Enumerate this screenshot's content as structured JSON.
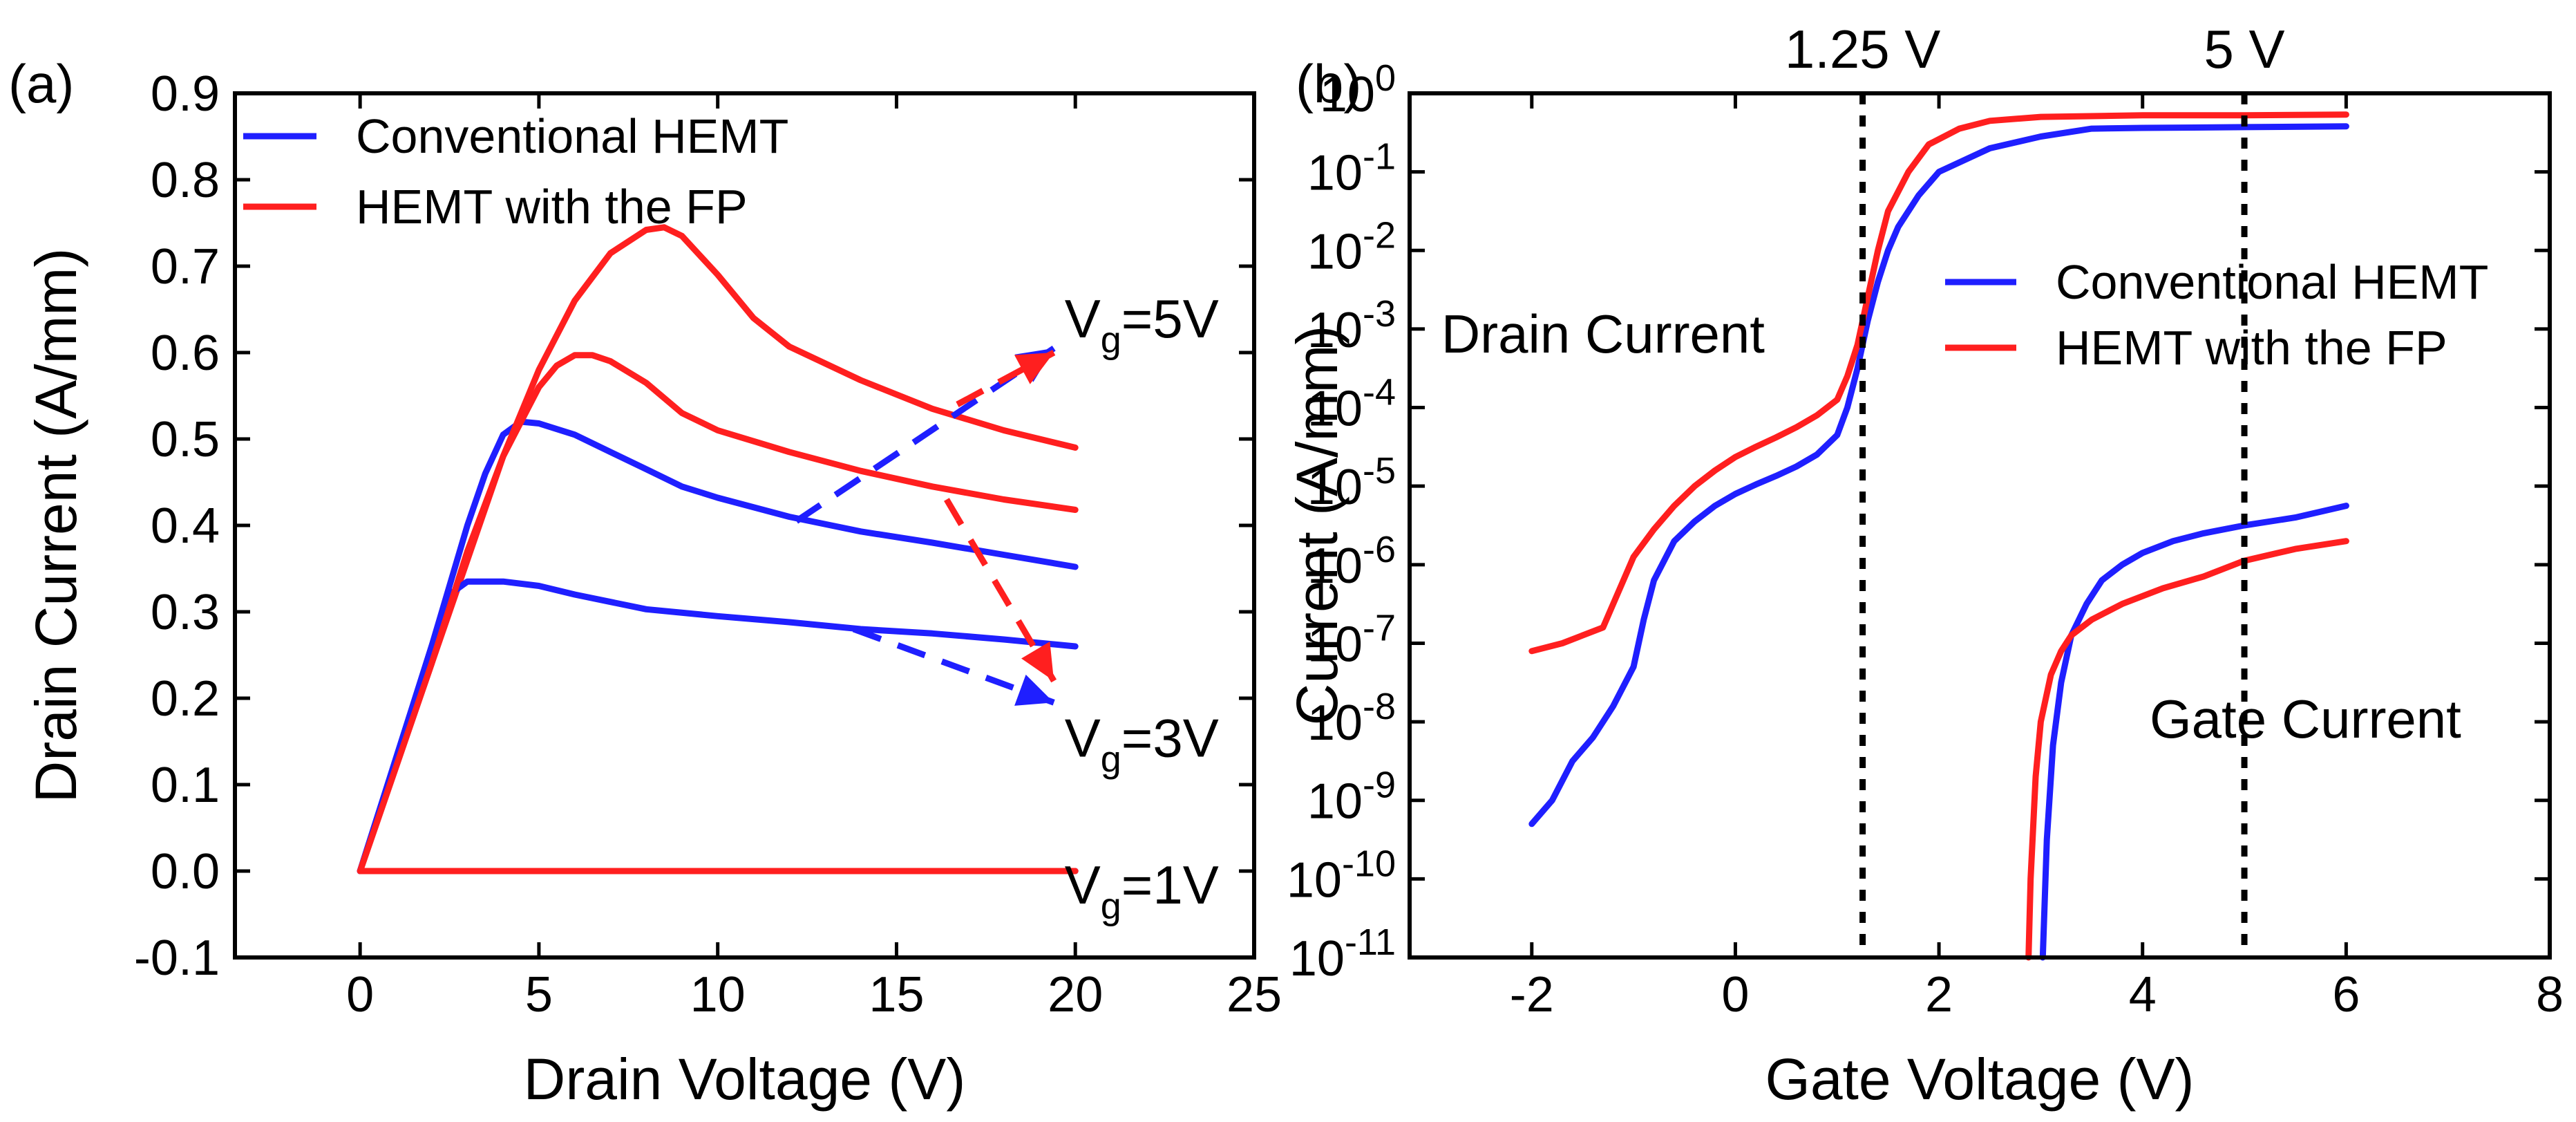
{
  "chart_data": [
    {
      "panel_label": "(a)",
      "type": "line",
      "xlabel": "Drain Voltage (V)",
      "ylabel": "Drain Current (A/mm)",
      "xlim": [
        -3.5,
        25
      ],
      "ylim": [
        -0.1,
        0.9
      ],
      "xticks": [
        0,
        5,
        10,
        15,
        20,
        25
      ],
      "xtick_labels": [
        "0",
        "5",
        "10",
        "15",
        "20",
        "25"
      ],
      "yticks": [
        -0.1,
        0.0,
        0.1,
        0.2,
        0.3,
        0.4,
        0.5,
        0.6,
        0.7,
        0.8,
        0.9
      ],
      "ytick_labels": [
        "-0.1",
        "0.0",
        "0.1",
        "0.2",
        "0.3",
        "0.4",
        "0.5",
        "0.6",
        "0.7",
        "0.8",
        "0.9"
      ],
      "legend": {
        "position": "top-left",
        "entries": [
          {
            "label": "Conventional HEMT",
            "color": "#1f1fff"
          },
          {
            "label": "HEMT with the FP",
            "color": "#ff1f1f"
          }
        ]
      },
      "series": [
        {
          "name": "Conventional HEMT, Vg=5V",
          "color": "#1f1fff",
          "x": [
            0,
            0.5,
            1,
            1.5,
            2,
            2.5,
            3,
            3.5,
            4,
            4.5,
            5,
            6,
            7,
            8,
            9,
            10,
            12,
            14,
            16,
            18,
            20
          ],
          "y": [
            0,
            0.065,
            0.13,
            0.195,
            0.26,
            0.33,
            0.4,
            0.46,
            0.505,
            0.52,
            0.518,
            0.505,
            0.485,
            0.465,
            0.445,
            0.432,
            0.41,
            0.393,
            0.38,
            0.366,
            0.352
          ]
        },
        {
          "name": "HEMT with the FP, Vg=5V",
          "color": "#ff1f1f",
          "x": [
            0,
            0.5,
            1,
            2,
            3,
            4,
            5,
            6,
            7,
            8,
            8.5,
            9,
            10,
            11,
            12,
            14,
            16,
            18,
            20
          ],
          "y": [
            0,
            0.06,
            0.12,
            0.24,
            0.36,
            0.48,
            0.58,
            0.66,
            0.715,
            0.742,
            0.745,
            0.735,
            0.69,
            0.64,
            0.607,
            0.568,
            0.535,
            0.51,
            0.49
          ]
        },
        {
          "name": "Conventional HEMT, Vg=3V",
          "color": "#1f1fff",
          "x": [
            0,
            0.5,
            1,
            1.5,
            2,
            2.5,
            3,
            4,
            5,
            6,
            8,
            10,
            12,
            14,
            16,
            18,
            20
          ],
          "y": [
            0,
            0.065,
            0.13,
            0.195,
            0.26,
            0.32,
            0.335,
            0.335,
            0.33,
            0.32,
            0.303,
            0.295,
            0.288,
            0.28,
            0.275,
            0.268,
            0.26
          ]
        },
        {
          "name": "HEMT with the FP, Vg=3V",
          "color": "#ff1f1f",
          "x": [
            0,
            0.5,
            1,
            2,
            3,
            4,
            5,
            5.5,
            6,
            6.5,
            7,
            8,
            9,
            10,
            12,
            14,
            16,
            18,
            20
          ],
          "y": [
            0,
            0.06,
            0.12,
            0.24,
            0.37,
            0.48,
            0.56,
            0.585,
            0.597,
            0.597,
            0.59,
            0.565,
            0.53,
            0.51,
            0.485,
            0.463,
            0.445,
            0.43,
            0.418
          ]
        },
        {
          "name": "Conventional HEMT, Vg=1V",
          "color": "#1f1fff",
          "x": [
            0,
            20
          ],
          "y": [
            0,
            0
          ]
        },
        {
          "name": "HEMT with the FP, Vg=1V",
          "color": "#ff1f1f",
          "x": [
            0,
            20
          ],
          "y": [
            0,
            0
          ]
        }
      ],
      "annotations": [
        {
          "main": "V",
          "sub": "g",
          "tail": "=5V",
          "x": 19.7,
          "y": 0.64
        },
        {
          "main": "V",
          "sub": "g",
          "tail": "=3V",
          "x": 19.7,
          "y": 0.155
        },
        {
          "main": "V",
          "sub": "g",
          "tail": "=1V",
          "x": 19.7,
          "y": -0.015
        }
      ],
      "arrows": [
        {
          "color": "#1f1fff",
          "x1": 12.2,
          "y1": 0.405,
          "x2": 19.4,
          "y2": 0.605
        },
        {
          "color": "#ff1f1f",
          "x1": 16.7,
          "y1": 0.54,
          "x2": 19.4,
          "y2": 0.6
        },
        {
          "color": "#1f1fff",
          "x1": 13.8,
          "y1": 0.28,
          "x2": 19.4,
          "y2": 0.195
        },
        {
          "color": "#ff1f1f",
          "x1": 16.4,
          "y1": 0.43,
          "x2": 19.4,
          "y2": 0.22
        }
      ]
    },
    {
      "panel_label": "(b)",
      "type": "line",
      "yscale": "log",
      "xlabel": "Gate Voltage (V)",
      "ylabel": "Current (A/mm)",
      "xlim": [
        -3.2,
        8
      ],
      "ylim_exp": [
        -11,
        0
      ],
      "xticks": [
        -2,
        0,
        2,
        4,
        6,
        8
      ],
      "xtick_labels": [
        "-2",
        "0",
        "2",
        "4",
        "6",
        "8"
      ],
      "ytick_labels": [
        {
          "base": "10",
          "exp": "0",
          "value": 0
        },
        {
          "base": "10",
          "exp": "-1",
          "value": -1
        },
        {
          "base": "10",
          "exp": "-2",
          "value": -2
        },
        {
          "base": "10",
          "exp": "-3",
          "value": -3
        },
        {
          "base": "10",
          "exp": "-4",
          "value": -4
        },
        {
          "base": "10",
          "exp": "-5",
          "value": -5
        },
        {
          "base": "10",
          "exp": "-6",
          "value": -6
        },
        {
          "base": "10",
          "exp": "-7",
          "value": -7
        },
        {
          "base": "10",
          "exp": "-8",
          "value": -8
        },
        {
          "base": "10",
          "exp": "-9",
          "value": -9
        },
        {
          "base": "10",
          "exp": "-10",
          "value": -10
        },
        {
          "base": "10",
          "exp": "-11",
          "value": -11
        }
      ],
      "legend": {
        "position": "upper-right",
        "entries": [
          {
            "label": "Conventional HEMT",
            "color": "#1f1fff"
          },
          {
            "label": "HEMT with the FP",
            "color": "#ff1f1f"
          }
        ]
      },
      "vlines": [
        {
          "x": 1.25,
          "label": "1.25 V"
        },
        {
          "x": 5,
          "label": "5 V"
        }
      ],
      "text_labels": [
        {
          "text": "Drain Current",
          "x": -1.3,
          "log10_y": -3.3
        },
        {
          "text": "Gate Current",
          "x": 5.6,
          "log10_y": -8.2
        }
      ],
      "series": [
        {
          "name": "Conventional HEMT, drain current",
          "color": "#1f1fff",
          "x": [
            -2,
            -1.8,
            -1.6,
            -1.4,
            -1.2,
            -1.0,
            -0.9,
            -0.8,
            -0.6,
            -0.4,
            -0.2,
            0,
            0.2,
            0.4,
            0.6,
            0.8,
            1.0,
            1.1,
            1.2,
            1.3,
            1.4,
            1.5,
            1.6,
            1.8,
            2.0,
            2.5,
            3.0,
            3.5,
            4.0,
            5.0,
            6.0
          ],
          "log10_y": [
            -9.3,
            -9.0,
            -8.5,
            -8.2,
            -7.8,
            -7.3,
            -6.7,
            -6.2,
            -5.7,
            -5.45,
            -5.25,
            -5.1,
            -4.98,
            -4.87,
            -4.75,
            -4.6,
            -4.35,
            -4.0,
            -3.5,
            -2.9,
            -2.4,
            -2.0,
            -1.7,
            -1.3,
            -1.0,
            -0.7,
            -0.55,
            -0.45,
            -0.44,
            -0.43,
            -0.42
          ]
        },
        {
          "name": "HEMT with the FP, drain current",
          "color": "#ff1f1f",
          "x": [
            -2,
            -1.7,
            -1.5,
            -1.3,
            -1.2,
            -1.1,
            -1.0,
            -0.8,
            -0.6,
            -0.4,
            -0.2,
            0,
            0.2,
            0.4,
            0.6,
            0.8,
            1.0,
            1.1,
            1.2,
            1.3,
            1.4,
            1.5,
            1.7,
            1.9,
            2.2,
            2.5,
            3.0,
            4.0,
            5.0,
            6.0
          ],
          "log10_y": [
            -7.1,
            -7.0,
            -6.9,
            -6.8,
            -6.5,
            -6.2,
            -5.9,
            -5.55,
            -5.25,
            -5.0,
            -4.8,
            -4.63,
            -4.5,
            -4.38,
            -4.25,
            -4.1,
            -3.9,
            -3.6,
            -3.2,
            -2.6,
            -2.0,
            -1.5,
            -1.0,
            -0.65,
            -0.45,
            -0.35,
            -0.3,
            -0.28,
            -0.28,
            -0.27
          ]
        },
        {
          "name": "Conventional HEMT, gate current",
          "color": "#1f1fff",
          "x": [
            3.02,
            3.06,
            3.12,
            3.2,
            3.3,
            3.45,
            3.6,
            3.8,
            4.0,
            4.3,
            4.6,
            5.0,
            5.5,
            6.0
          ],
          "log10_y": [
            -11,
            -9.5,
            -8.3,
            -7.5,
            -6.9,
            -6.5,
            -6.2,
            -6.0,
            -5.85,
            -5.7,
            -5.6,
            -5.5,
            -5.4,
            -5.25
          ]
        },
        {
          "name": "HEMT with the FP, gate current",
          "color": "#ff1f1f",
          "x": [
            2.88,
            2.9,
            2.95,
            3.0,
            3.1,
            3.2,
            3.3,
            3.5,
            3.8,
            4.2,
            4.6,
            5.0,
            5.5,
            6.0
          ],
          "log10_y": [
            -11,
            -10,
            -8.7,
            -8.0,
            -7.4,
            -7.1,
            -6.9,
            -6.7,
            -6.5,
            -6.3,
            -6.15,
            -5.95,
            -5.8,
            -5.7
          ]
        }
      ]
    }
  ]
}
